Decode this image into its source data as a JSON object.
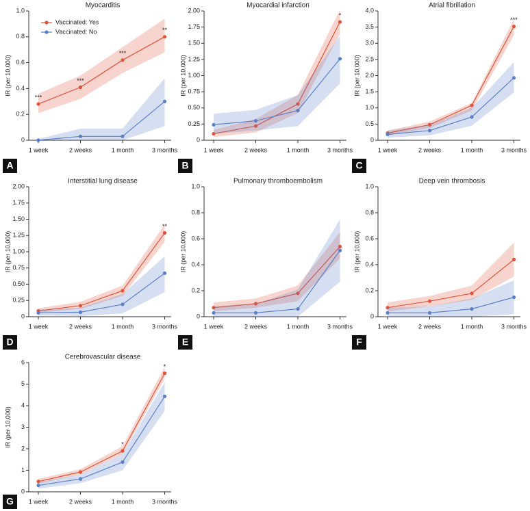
{
  "chart_data": [
    {
      "type": "line",
      "panel": "A",
      "title": "Myocarditis",
      "ylabel": "IR (per 10,000)",
      "legend": "upper left",
      "categories": [
        "1 week",
        "2 weeks",
        "1 month",
        "3 months"
      ],
      "ylim": [
        0,
        1
      ],
      "yticks": [
        0,
        0.2,
        0.4,
        0.6,
        0.8,
        {
          "value": 1,
          "label": "1.0"
        }
      ],
      "series": [
        {
          "name": "Vaccinated: Yes",
          "color": "#e0533a",
          "values": [
            0.28,
            0.41,
            0.62,
            0.8
          ],
          "lower": [
            0.21,
            0.32,
            0.52,
            0.68
          ],
          "upper": [
            0.36,
            0.5,
            0.72,
            0.94
          ],
          "significance": [
            "***",
            "***",
            "***",
            "**"
          ]
        },
        {
          "name": "Vaccinated: No",
          "color": "#5b7fc7",
          "values": [
            0.0,
            0.03,
            0.03,
            0.3
          ],
          "lower": [
            0,
            0,
            0,
            0.11
          ],
          "upper": [
            0.01,
            0.09,
            0.09,
            0.48
          ]
        }
      ]
    },
    {
      "type": "line",
      "panel": "B",
      "title": "Myocardial infarction",
      "ylabel": "IR (per 10,000)",
      "categories": [
        "1 week",
        "2 weeks",
        "1 month",
        "3 months"
      ],
      "ylim": [
        0,
        2
      ],
      "yticks": [
        0,
        0.25,
        {
          "value": 0.5,
          "label": "0.50"
        },
        0.75,
        {
          "value": 1,
          "label": "1.00"
        },
        1.25,
        {
          "value": 1.5,
          "label": "1.50"
        },
        1.75,
        {
          "value": 2,
          "label": "2.00"
        }
      ],
      "series": [
        {
          "color": "#e0533a",
          "values": [
            0.1,
            0.22,
            0.56,
            1.83
          ],
          "lower": [
            0.05,
            0.12,
            0.42,
            1.65
          ],
          "upper": [
            0.16,
            0.33,
            0.7,
            2.02
          ],
          "significance": [
            null,
            null,
            null,
            "*"
          ]
        },
        {
          "color": "#5b7fc7",
          "values": [
            0.24,
            0.3,
            0.46,
            1.26
          ],
          "lower": [
            0.1,
            0.15,
            0.22,
            0.88
          ],
          "upper": [
            0.41,
            0.47,
            0.7,
            1.62
          ]
        }
      ]
    },
    {
      "type": "line",
      "panel": "C",
      "title": "Atrial fibrillation",
      "ylabel": "IR (per 10,000)",
      "categories": [
        "1 week",
        "2 weeks",
        "1 month",
        "3 months"
      ],
      "ylim": [
        0,
        4
      ],
      "yticks": [
        0,
        0.5,
        {
          "value": 1,
          "label": "1.0"
        },
        1.5,
        {
          "value": 2,
          "label": "2.0"
        },
        2.5,
        {
          "value": 3,
          "label": "3.0"
        },
        3.5,
        {
          "value": 4,
          "label": "4.0"
        }
      ],
      "series": [
        {
          "color": "#e0533a",
          "values": [
            0.22,
            0.48,
            1.08,
            3.52
          ],
          "lower": [
            0.15,
            0.38,
            0.92,
            3.25
          ],
          "upper": [
            0.3,
            0.58,
            1.15,
            3.75
          ],
          "significance": [
            null,
            null,
            null,
            "***"
          ]
        },
        {
          "color": "#5b7fc7",
          "values": [
            0.18,
            0.3,
            0.72,
            1.93
          ],
          "lower": [
            0.08,
            0.15,
            0.45,
            1.48
          ],
          "upper": [
            0.3,
            0.48,
            1.0,
            2.42
          ]
        }
      ]
    },
    {
      "type": "line",
      "panel": "D",
      "title": "Interstitial lung disease",
      "ylabel": "IR (per 10,000)",
      "categories": [
        "1 week",
        "2 weeks",
        "1 month",
        "3 months"
      ],
      "ylim": [
        0,
        2
      ],
      "yticks": [
        0,
        0.25,
        {
          "value": 0.5,
          "label": "0.50"
        },
        0.75,
        {
          "value": 1,
          "label": "1.00"
        },
        1.25,
        {
          "value": 1.5,
          "label": "1.50"
        },
        1.75,
        {
          "value": 2,
          "label": "2.00"
        }
      ],
      "series": [
        {
          "color": "#e0533a",
          "values": [
            0.09,
            0.17,
            0.4,
            1.29
          ],
          "lower": [
            0.06,
            0.12,
            0.32,
            1.15
          ],
          "upper": [
            0.13,
            0.23,
            0.48,
            1.42
          ],
          "significance": [
            null,
            null,
            null,
            "**"
          ]
        },
        {
          "color": "#5b7fc7",
          "values": [
            0.06,
            0.07,
            0.19,
            0.67
          ],
          "lower": [
            0.02,
            0.01,
            0.05,
            0.38
          ],
          "upper": [
            0.11,
            0.14,
            0.35,
            0.93
          ]
        }
      ]
    },
    {
      "type": "line",
      "panel": "E",
      "title": "Pulmonary thromboembolism",
      "ylabel": "IR (per 10,000)",
      "categories": [
        "1 week",
        "2 weeks",
        "1 month",
        "3 months"
      ],
      "ylim": [
        0,
        1
      ],
      "yticks": [
        0,
        0.2,
        0.4,
        0.6,
        0.8,
        {
          "value": 1,
          "label": "1.0"
        }
      ],
      "series": [
        {
          "color": "#e0533a",
          "values": [
            0.07,
            0.1,
            0.18,
            0.54
          ],
          "lower": [
            0.04,
            0.07,
            0.12,
            0.45
          ],
          "upper": [
            0.11,
            0.14,
            0.24,
            0.65
          ]
        },
        {
          "color": "#5b7fc7",
          "values": [
            0.03,
            0.03,
            0.06,
            0.51
          ],
          "lower": [
            0,
            0,
            0,
            0.27
          ],
          "upper": [
            0.08,
            0.1,
            0.21,
            0.75
          ]
        }
      ]
    },
    {
      "type": "line",
      "panel": "F",
      "title": "Deep vein thrombosis",
      "ylabel": "IR (per 10,000)",
      "categories": [
        "1 week",
        "2 weeks",
        "1 month",
        "3 months"
      ],
      "ylim": [
        0,
        1
      ],
      "yticks": [
        0,
        0.2,
        0.4,
        0.6,
        0.8,
        {
          "value": 1,
          "label": "1.0"
        }
      ],
      "series": [
        {
          "color": "#e0533a",
          "values": [
            0.07,
            0.12,
            0.18,
            0.44
          ],
          "lower": [
            0.04,
            0.08,
            0.13,
            0.31
          ],
          "upper": [
            0.11,
            0.16,
            0.24,
            0.57
          ]
        },
        {
          "color": "#5b7fc7",
          "values": [
            0.03,
            0.03,
            0.06,
            0.15
          ],
          "lower": [
            0,
            0,
            0,
            0.02
          ],
          "upper": [
            0.07,
            0.08,
            0.14,
            0.28
          ]
        }
      ]
    },
    {
      "type": "line",
      "panel": "G",
      "title": "Cerebrovascular disease",
      "ylabel": "IR (per 10,000)",
      "categories": [
        "1 week",
        "2 weeks",
        "1 month",
        "3 months"
      ],
      "ylim": [
        0,
        6
      ],
      "yticks": [
        0,
        1,
        2,
        3,
        4,
        5,
        6
      ],
      "series": [
        {
          "color": "#e0533a",
          "values": [
            0.48,
            0.92,
            1.9,
            5.5
          ],
          "lower": [
            0.38,
            0.8,
            1.75,
            5.25
          ],
          "upper": [
            0.6,
            1.05,
            2.12,
            5.8
          ],
          "significance": [
            null,
            null,
            "*",
            "*"
          ]
        },
        {
          "color": "#5b7fc7",
          "values": [
            0.3,
            0.6,
            1.38,
            4.43
          ],
          "lower": [
            0.15,
            0.4,
            1.0,
            3.75
          ],
          "upper": [
            0.45,
            0.8,
            1.75,
            5.1
          ]
        }
      ]
    }
  ]
}
